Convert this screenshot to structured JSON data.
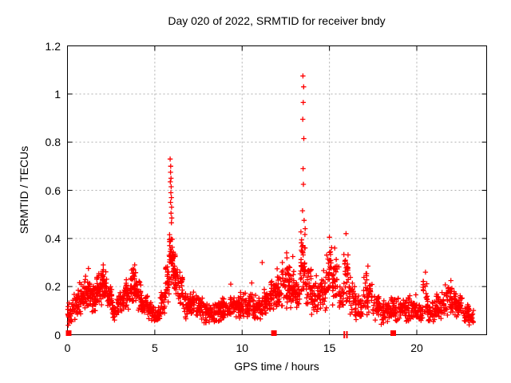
{
  "figure": {
    "background": "#ffffff",
    "frame_color": "#000000"
  },
  "chart_data": {
    "type": "scatter",
    "title": "Day 020 of 2022, SRMTID for receiver bndy",
    "xlabel": "GPS time / hours",
    "ylabel": "SRMTID / TECUs",
    "xlim": [
      0,
      24
    ],
    "ylim": [
      0,
      1.2
    ],
    "xticks": [
      0,
      5,
      10,
      15,
      20
    ],
    "xtick_labels": [
      "0",
      "5",
      "10",
      "15",
      "20"
    ],
    "yticks": [
      0,
      0.2,
      0.4,
      0.6,
      0.8,
      1.0,
      1.2
    ],
    "ytick_labels": [
      "0",
      "0.2",
      "0.4",
      "0.6",
      "0.8",
      "1",
      "1.2"
    ],
    "grid": true,
    "grid_color": "#b0b0b0",
    "marker": "plus",
    "marker_color": "#ff0000",
    "seed": 20220120,
    "series_name": "SRMTID",
    "notable_points": [
      [
        5.88,
        0.73
      ],
      [
        5.91,
        0.7
      ],
      [
        5.9,
        0.675
      ],
      [
        5.93,
        0.65
      ],
      [
        5.89,
        0.635
      ],
      [
        5.94,
        0.615
      ],
      [
        5.92,
        0.59
      ],
      [
        5.95,
        0.57
      ],
      [
        5.9,
        0.55
      ],
      [
        5.96,
        0.53
      ],
      [
        5.93,
        0.505
      ],
      [
        5.97,
        0.485
      ],
      [
        5.95,
        0.465
      ],
      [
        13.48,
        1.075
      ],
      [
        13.52,
        1.03
      ],
      [
        13.5,
        0.965
      ],
      [
        13.47,
        0.895
      ],
      [
        13.53,
        0.815
      ],
      [
        13.49,
        0.69
      ],
      [
        13.51,
        0.625
      ],
      [
        13.46,
        0.515
      ],
      [
        13.55,
        0.475
      ],
      [
        11.15,
        0.3
      ],
      [
        12.3,
        0.3
      ],
      [
        12.55,
        0.34
      ],
      [
        12.9,
        0.325
      ],
      [
        2.05,
        0.29
      ],
      [
        3.85,
        0.29
      ],
      [
        1.2,
        0.275
      ],
      [
        17.2,
        0.285
      ],
      [
        20.5,
        0.26
      ],
      [
        15.0,
        0.405
      ],
      [
        15.95,
        0.42
      ],
      [
        15.3,
        0.36
      ],
      [
        9.35,
        0.21
      ],
      [
        10.55,
        0.215
      ],
      [
        21.95,
        0.225
      ],
      [
        14.25,
        0.245
      ]
    ],
    "band_clusters": [
      [
        0.0,
        0.25,
        0.03,
        0.15,
        20
      ],
      [
        0.25,
        0.6,
        0.06,
        0.18,
        30
      ],
      [
        0.6,
        0.95,
        0.08,
        0.22,
        35
      ],
      [
        0.95,
        1.3,
        0.1,
        0.26,
        40
      ],
      [
        1.3,
        1.6,
        0.09,
        0.23,
        32
      ],
      [
        1.6,
        1.95,
        0.11,
        0.27,
        40
      ],
      [
        1.95,
        2.25,
        0.12,
        0.28,
        38
      ],
      [
        2.25,
        2.55,
        0.09,
        0.22,
        30
      ],
      [
        2.55,
        2.9,
        0.06,
        0.16,
        32
      ],
      [
        2.9,
        3.25,
        0.08,
        0.19,
        32
      ],
      [
        3.25,
        3.6,
        0.1,
        0.24,
        36
      ],
      [
        3.6,
        3.95,
        0.11,
        0.28,
        38
      ],
      [
        3.95,
        4.25,
        0.09,
        0.24,
        30
      ],
      [
        4.25,
        4.6,
        0.07,
        0.18,
        32
      ],
      [
        4.6,
        4.95,
        0.05,
        0.14,
        32
      ],
      [
        4.95,
        5.3,
        0.04,
        0.12,
        32
      ],
      [
        5.3,
        5.6,
        0.07,
        0.18,
        28
      ],
      [
        5.6,
        5.82,
        0.12,
        0.32,
        25
      ],
      [
        5.82,
        6.08,
        0.18,
        0.47,
        40
      ],
      [
        6.08,
        6.3,
        0.13,
        0.36,
        28
      ],
      [
        6.3,
        6.6,
        0.09,
        0.27,
        26
      ],
      [
        6.6,
        6.95,
        0.06,
        0.18,
        30
      ],
      [
        6.95,
        7.35,
        0.07,
        0.2,
        34
      ],
      [
        7.35,
        7.8,
        0.06,
        0.17,
        38
      ],
      [
        7.8,
        8.3,
        0.04,
        0.14,
        42
      ],
      [
        8.3,
        8.8,
        0.05,
        0.15,
        42
      ],
      [
        8.8,
        9.3,
        0.05,
        0.16,
        42
      ],
      [
        9.3,
        9.8,
        0.06,
        0.17,
        42
      ],
      [
        9.8,
        10.3,
        0.06,
        0.18,
        42
      ],
      [
        10.3,
        10.8,
        0.06,
        0.18,
        42
      ],
      [
        10.8,
        11.2,
        0.06,
        0.17,
        34
      ],
      [
        11.2,
        11.6,
        0.07,
        0.2,
        34
      ],
      [
        11.6,
        12.0,
        0.08,
        0.24,
        34
      ],
      [
        12.0,
        12.35,
        0.09,
        0.28,
        32
      ],
      [
        12.35,
        12.7,
        0.1,
        0.33,
        36
      ],
      [
        12.7,
        13.05,
        0.1,
        0.3,
        36
      ],
      [
        13.05,
        13.32,
        0.09,
        0.24,
        26
      ],
      [
        13.32,
        13.62,
        0.14,
        0.45,
        42
      ],
      [
        13.62,
        13.95,
        0.1,
        0.3,
        30
      ],
      [
        13.95,
        14.4,
        0.08,
        0.22,
        38
      ],
      [
        14.4,
        14.8,
        0.09,
        0.28,
        34
      ],
      [
        14.8,
        15.15,
        0.11,
        0.39,
        34
      ],
      [
        15.15,
        15.55,
        0.09,
        0.34,
        34
      ],
      [
        15.55,
        15.82,
        0.07,
        0.22,
        20
      ],
      [
        15.82,
        16.1,
        0.1,
        0.4,
        26
      ],
      [
        16.1,
        16.45,
        0.07,
        0.24,
        28
      ],
      [
        16.45,
        16.9,
        0.06,
        0.17,
        36
      ],
      [
        16.9,
        17.45,
        0.07,
        0.27,
        42
      ],
      [
        17.45,
        17.95,
        0.06,
        0.18,
        40
      ],
      [
        17.95,
        18.45,
        0.04,
        0.15,
        40
      ],
      [
        18.45,
        18.95,
        0.05,
        0.16,
        40
      ],
      [
        18.95,
        19.45,
        0.05,
        0.15,
        40
      ],
      [
        19.45,
        19.95,
        0.05,
        0.17,
        40
      ],
      [
        19.95,
        20.35,
        0.04,
        0.14,
        32
      ],
      [
        20.35,
        20.6,
        0.07,
        0.25,
        20
      ],
      [
        20.6,
        21.1,
        0.05,
        0.15,
        38
      ],
      [
        21.1,
        21.6,
        0.06,
        0.19,
        40
      ],
      [
        21.6,
        22.15,
        0.07,
        0.21,
        42
      ],
      [
        22.15,
        22.65,
        0.06,
        0.18,
        40
      ],
      [
        22.65,
        23.0,
        0.04,
        0.13,
        28
      ],
      [
        23.0,
        23.25,
        0.03,
        0.11,
        18
      ]
    ],
    "zero_square_markers_x": [
      0.07,
      11.82,
      18.65
    ],
    "zero_bar_markers_x": [
      15.85,
      16.0
    ]
  }
}
